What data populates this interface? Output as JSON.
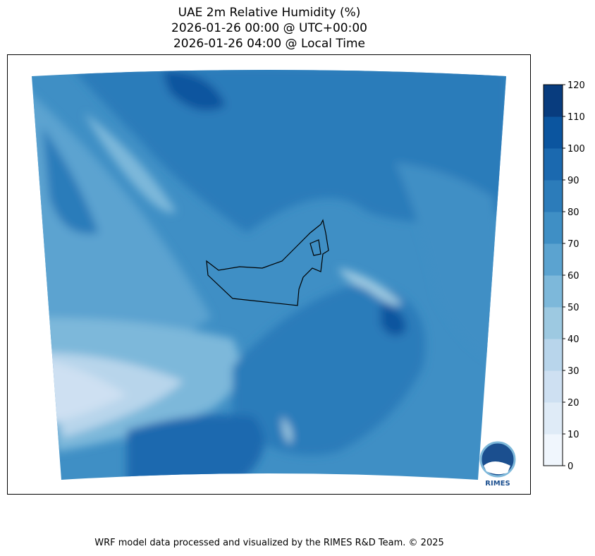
{
  "title": {
    "line1": "UAE 2m Relative Humidity (%)",
    "line2": "2026-01-26 00:00 @ UTC+00:00",
    "line3": "2026-01-26 04:00 @ Local Time"
  },
  "colorbar": {
    "levels": [
      0,
      10,
      20,
      30,
      40,
      50,
      60,
      70,
      80,
      90,
      100,
      110,
      120
    ],
    "tick_labels": [
      "0",
      "10",
      "20",
      "30",
      "40",
      "50",
      "60",
      "70",
      "80",
      "90",
      "100",
      "110",
      "120"
    ],
    "colors": [
      "#f0f6fd",
      "#dfebf7",
      "#cee0f2",
      "#b8d5eb",
      "#9dc9e1",
      "#7db8da",
      "#5ba3d0",
      "#3f8fc5",
      "#2c7cba",
      "#1b69af",
      "#0b559f",
      "#083c7e"
    ]
  },
  "logo": {
    "text": "RIMES"
  },
  "footer": "WRF model data processed and visualized by the RIMES R&D Team. © 2025"
}
